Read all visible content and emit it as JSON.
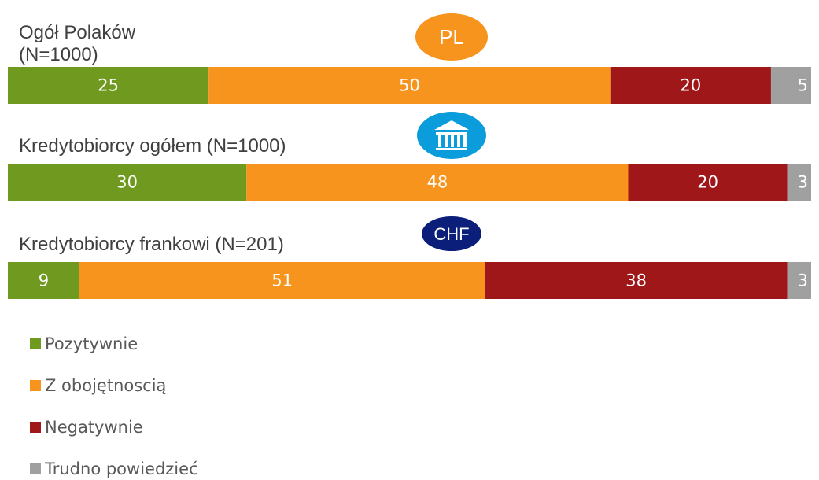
{
  "chart_data": {
    "type": "stacked_barh",
    "categories": [
      "Ogół Polaków\n(N=1000)",
      "Kredytobiorcy ogółem (N=1000)",
      "Kredytobiorcy frankowi (N=201)"
    ],
    "badges": [
      "PL",
      "CHF"
    ],
    "series": [
      {
        "name": "Pozytywnie",
        "color": "#6f9a1f",
        "values": [
          25,
          30,
          9
        ]
      },
      {
        "name": "Z obojętnoscią",
        "color": "#f7941d",
        "values": [
          50,
          48,
          51
        ]
      },
      {
        "name": "Negatywnie",
        "color": "#a0171a",
        "values": [
          20,
          20,
          38
        ]
      },
      {
        "name": "Trudno powiedzieć",
        "color": "#a0a0a0",
        "values": [
          5,
          3,
          3
        ]
      }
    ],
    "legend": "bottom-left"
  }
}
